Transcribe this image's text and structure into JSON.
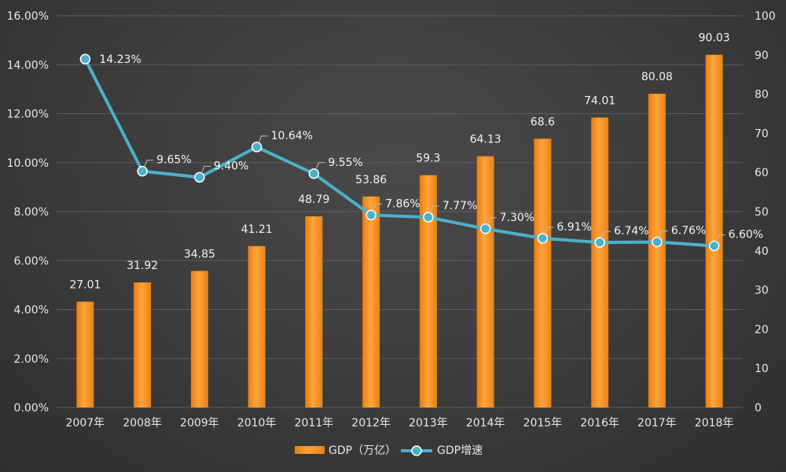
{
  "chart_data": {
    "type": "bar+line",
    "title": "",
    "categories": [
      "2007年",
      "2008年",
      "2009年",
      "2010年",
      "2011年",
      "2012年",
      "2013年",
      "2014年",
      "2015年",
      "2016年",
      "2017年",
      "2018年"
    ],
    "series": [
      {
        "name": "GDP（万亿）",
        "type": "bar",
        "axis": "right",
        "values": [
          27.01,
          31.92,
          34.85,
          41.21,
          48.79,
          53.86,
          59.3,
          64.13,
          68.6,
          74.01,
          80.08,
          90.03
        ],
        "labels": [
          "27.01",
          "31.92",
          "34.85",
          "41.21",
          "48.79",
          "53.86",
          "59.3",
          "64.13",
          "68.6",
          "74.01",
          "80.08",
          "90.03"
        ],
        "color": "#f39525"
      },
      {
        "name": "GDP增速",
        "type": "line",
        "axis": "left",
        "values": [
          14.23,
          9.65,
          9.4,
          10.64,
          9.55,
          7.86,
          7.77,
          7.3,
          6.91,
          6.74,
          6.76,
          6.6
        ],
        "labels": [
          "14.23%",
          "9.65%",
          "9.40%",
          "10.64%",
          "9.55%",
          "7.86%",
          "7.77%",
          "7.30%",
          "6.91%",
          "6.74%",
          "6.76%",
          "6.60%"
        ],
        "color": "#4bb1c8"
      }
    ],
    "left_axis": {
      "ylim": [
        0,
        16
      ],
      "ticks": [
        "0.00%",
        "2.00%",
        "4.00%",
        "6.00%",
        "8.00%",
        "10.00%",
        "12.00%",
        "14.00%",
        "16.00%"
      ]
    },
    "right_axis": {
      "ylim": [
        0,
        100
      ],
      "ticks": [
        "0",
        "10",
        "20",
        "30",
        "40",
        "50",
        "60",
        "70",
        "80",
        "90",
        "100"
      ]
    },
    "legend": {
      "position": "bottom-center",
      "entries": [
        "GDP（万亿）",
        "GDP增速"
      ]
    },
    "grid": true
  }
}
